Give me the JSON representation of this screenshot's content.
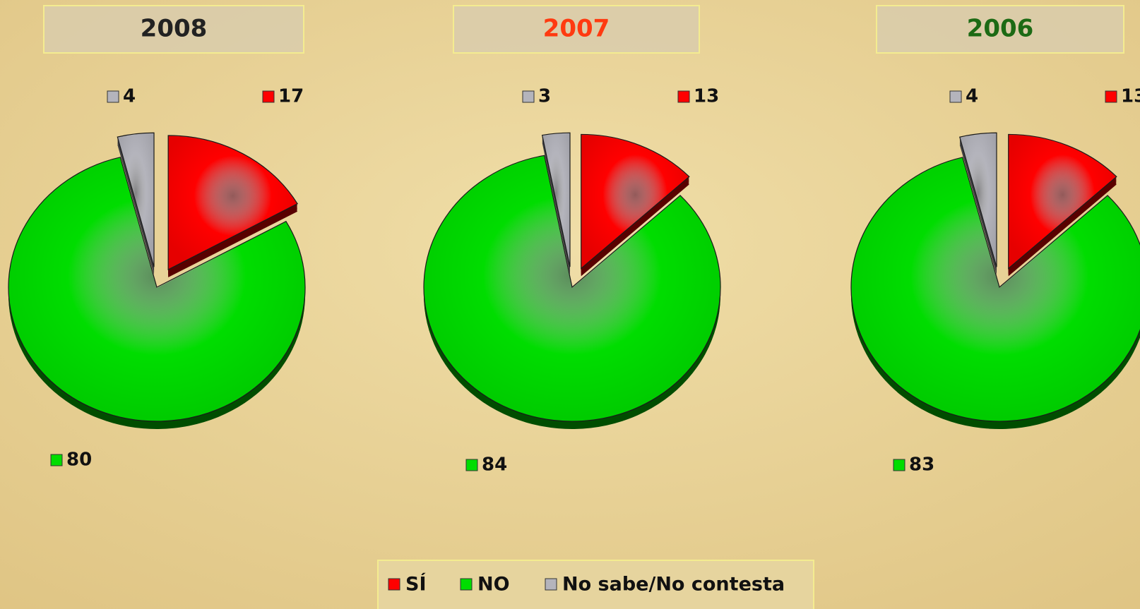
{
  "chart_data": [
    {
      "type": "pie",
      "title": "2008",
      "title_color": "#222222",
      "values": [
        17,
        80,
        4
      ]
    },
    {
      "type": "pie",
      "title": "2007",
      "title_color": "#ff3a10",
      "values": [
        13,
        84,
        3
      ]
    },
    {
      "type": "pie",
      "title": "2006",
      "title_color": "#1c6a14",
      "values": [
        13,
        83,
        4
      ]
    }
  ],
  "legend": {
    "categories": [
      "SÍ",
      "NO",
      "No sabe/No contesta"
    ],
    "colors": [
      "#ff0000",
      "#00dd00",
      "#b4b4bc"
    ]
  }
}
